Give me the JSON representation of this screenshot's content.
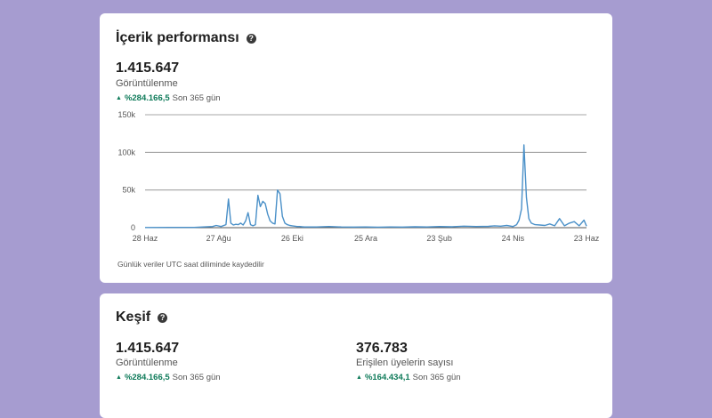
{
  "performance": {
    "title": "İçerik performansı",
    "help_icon": "help-icon",
    "views_value": "1.415.647",
    "views_label": "Görüntülenme",
    "delta_pct": "%284.166,5",
    "delta_period": "Son 365 gün",
    "footnote": "Günlük veriler UTC saat diliminde kaydedilir"
  },
  "discovery": {
    "title": "Keşif",
    "views_value": "1.415.647",
    "views_label": "Görüntülenme",
    "views_delta_pct": "%284.166,5",
    "views_delta_period": "Son 365 gün",
    "members_value": "376.783",
    "members_label": "Erişilen üyelerin sayısı",
    "members_delta_pct": "%164.434,1",
    "members_delta_period": "Son 365 gün"
  },
  "colors": {
    "background": "#a69cd0",
    "line": "#4a90c8",
    "positive": "#0f7b5a",
    "grid": "#8a8a8a"
  },
  "chart_data": {
    "type": "line",
    "title": "",
    "xlabel": "",
    "ylabel": "",
    "ylim": [
      0,
      150000
    ],
    "y_ticks": [
      0,
      50000,
      100000,
      150000
    ],
    "y_tick_labels": [
      "0",
      "50k",
      "100k",
      "150k"
    ],
    "x_tick_days": [
      0,
      60,
      120,
      180,
      240,
      300,
      360
    ],
    "x_tick_labels": [
      "28 Haz",
      "27 Ağu",
      "26 Eki",
      "25 Ara",
      "23 Şub",
      "24 Nis",
      "23 Haz"
    ],
    "x_range_days": [
      0,
      360
    ],
    "series": [
      {
        "name": "Görüntülenme",
        "x": [
          0,
          20,
          40,
          55,
          58,
          62,
          66,
          68,
          70,
          72,
          74,
          76,
          78,
          80,
          82,
          84,
          86,
          88,
          90,
          92,
          94,
          96,
          98,
          100,
          102,
          104,
          106,
          108,
          110,
          112,
          114,
          116,
          118,
          120,
          122,
          124,
          126,
          128,
          130,
          140,
          150,
          160,
          170,
          180,
          190,
          200,
          210,
          220,
          230,
          240,
          250,
          260,
          270,
          280,
          285,
          290,
          295,
          300,
          303,
          305,
          307,
          309,
          311,
          313,
          315,
          318,
          322,
          326,
          330,
          334,
          338,
          342,
          346,
          350,
          354,
          358,
          360
        ],
        "values": [
          200,
          300,
          400,
          1500,
          3000,
          1500,
          4000,
          38000,
          6000,
          3500,
          4500,
          4000,
          6000,
          3500,
          9000,
          20000,
          4000,
          2500,
          4000,
          43000,
          28000,
          35000,
          32000,
          18000,
          9000,
          6000,
          5000,
          50000,
          45000,
          15000,
          6000,
          4000,
          3000,
          2500,
          2000,
          1500,
          1500,
          1200,
          1000,
          900,
          1500,
          1000,
          800,
          900,
          700,
          900,
          800,
          1200,
          900,
          1500,
          1200,
          2000,
          1500,
          1800,
          2500,
          2000,
          3000,
          1500,
          4000,
          10000,
          25000,
          110000,
          40000,
          12000,
          6000,
          4000,
          3500,
          3000,
          5000,
          2500,
          12000,
          2500,
          6000,
          8000,
          2500,
          10000,
          2000
        ]
      }
    ]
  }
}
